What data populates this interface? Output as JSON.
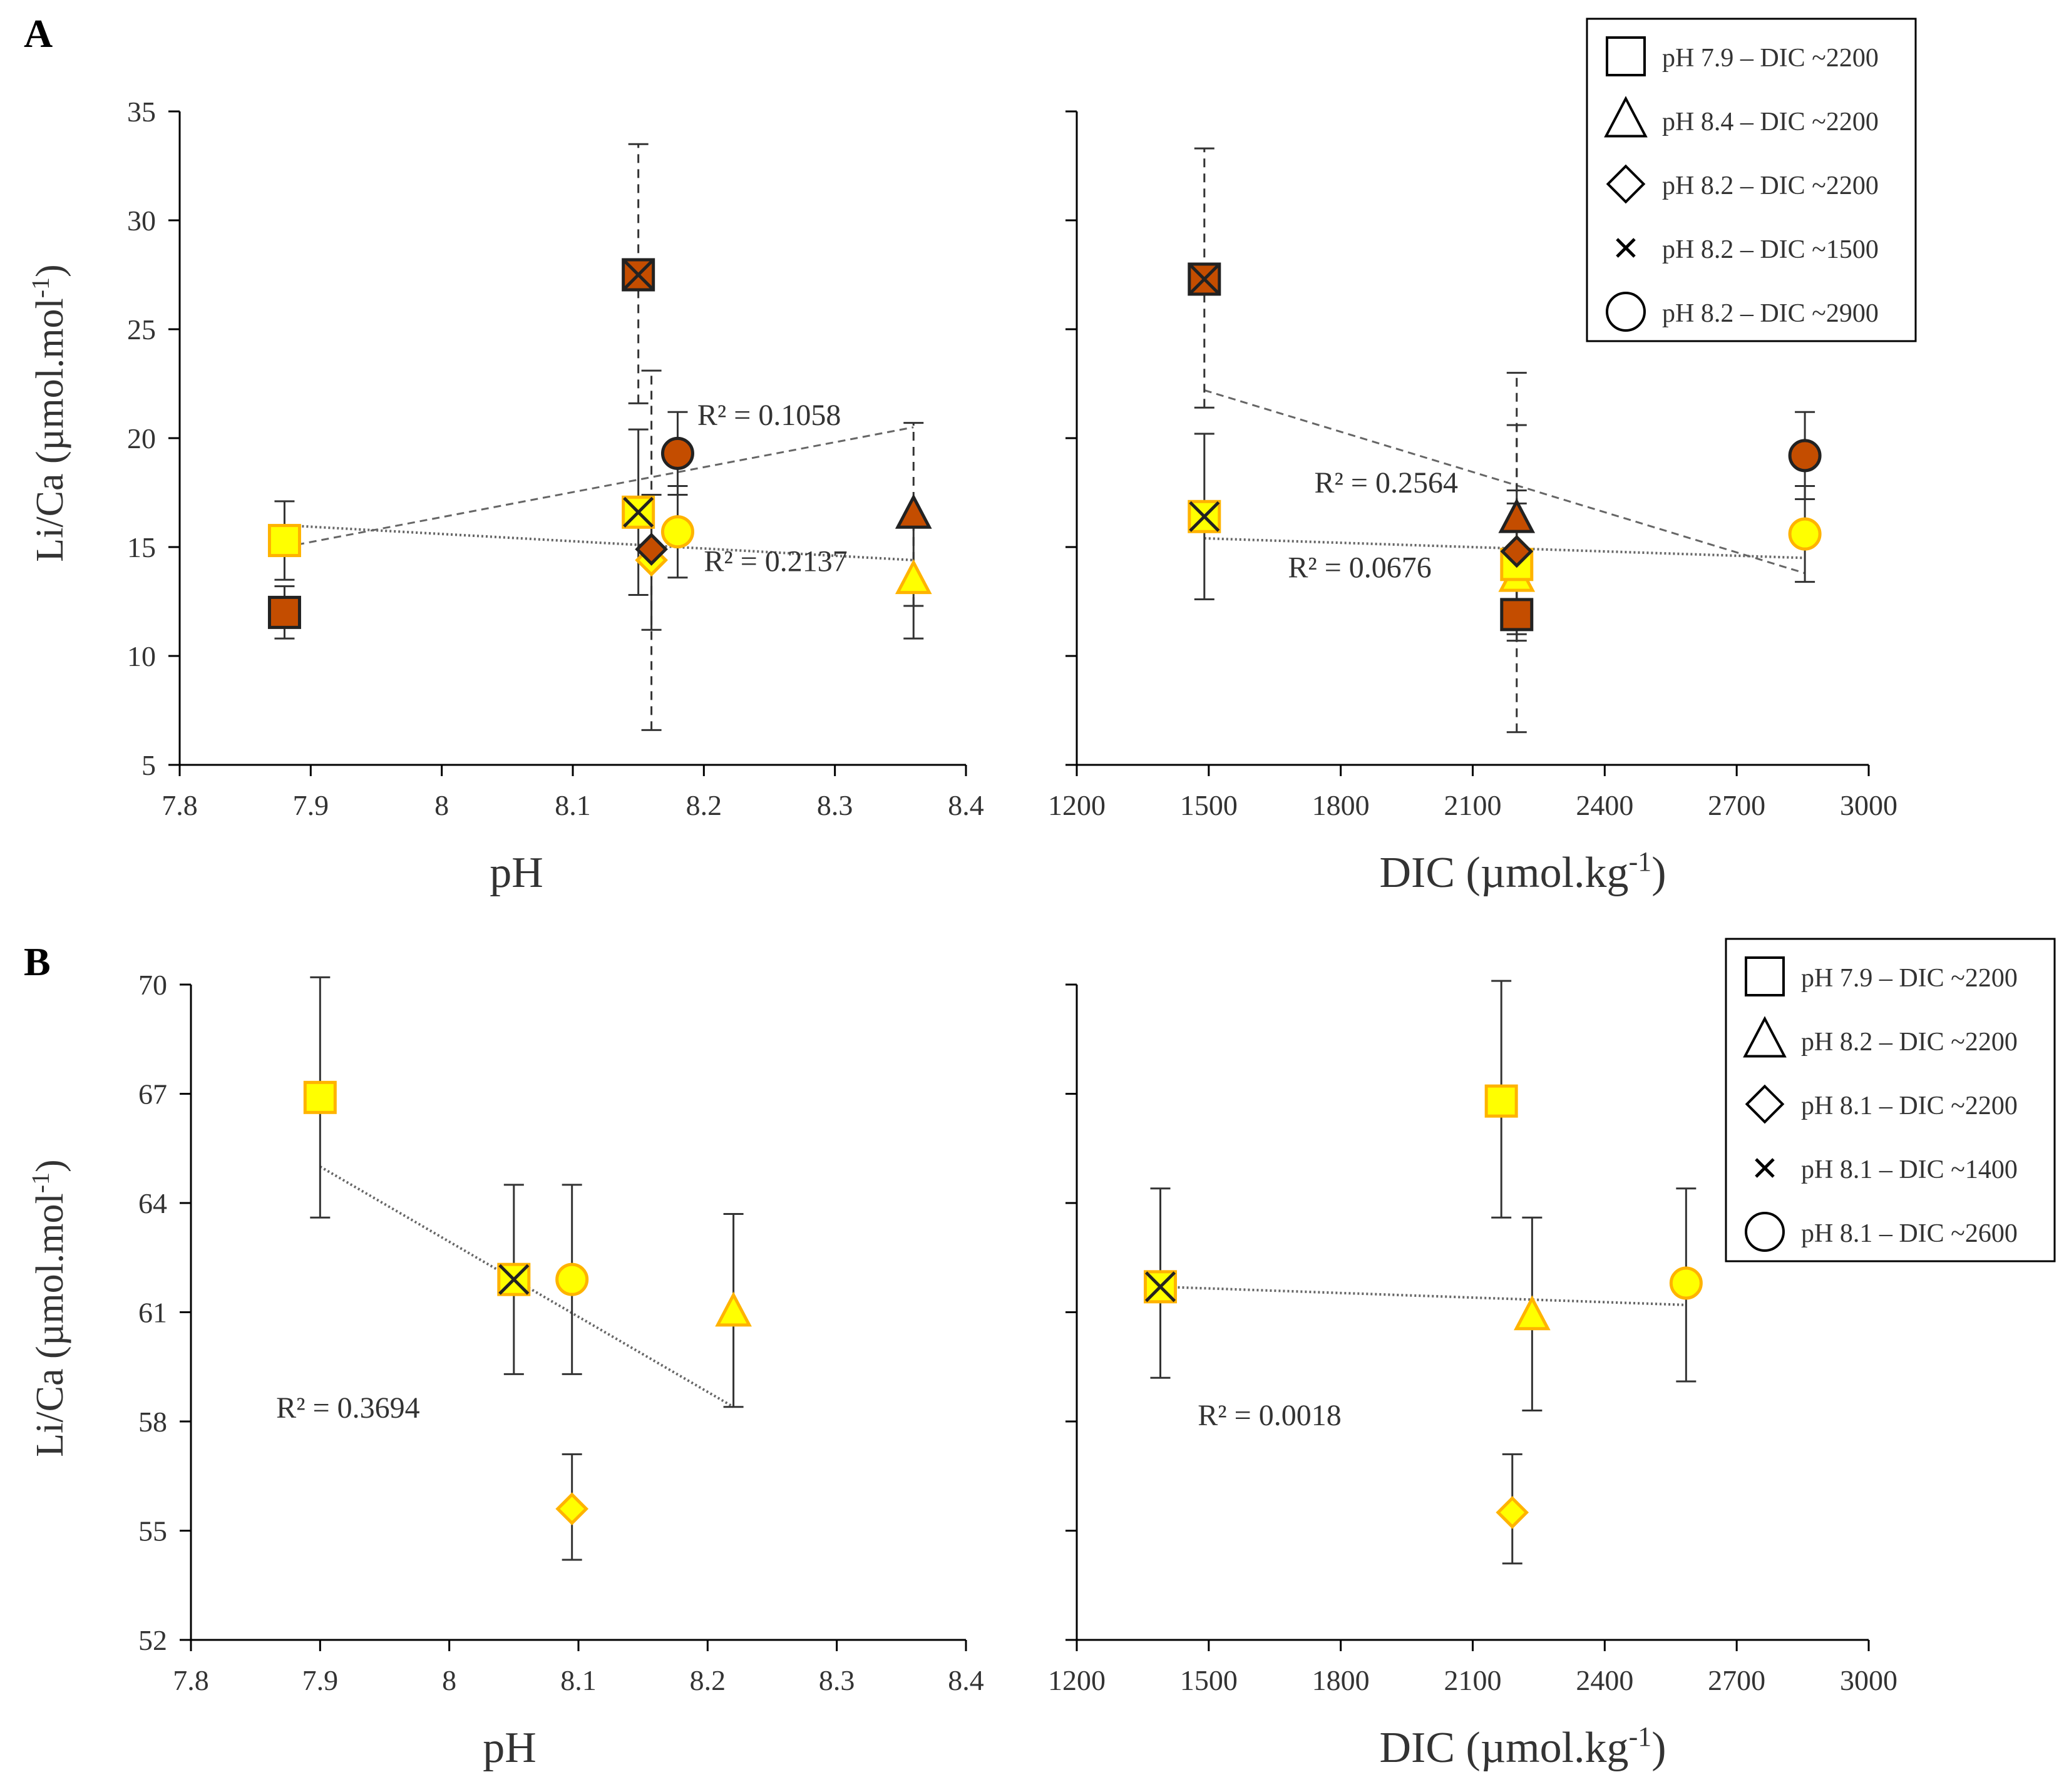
{
  "colors": {
    "orange": "#C44D00",
    "yellow": "#FFFF00",
    "yellow_edge": "#FFB300",
    "dark_edge": "#222222",
    "trend": "#666666"
  },
  "panels": [
    {
      "letter": "A",
      "ylabel": "Li/Ca (µmol.mol-1)",
      "legend": [
        {
          "symbol": "square",
          "label": "pH 7.9 – DIC ~2200"
        },
        {
          "symbol": "triangle",
          "label": "pH 8.4 – DIC ~2200"
        },
        {
          "symbol": "diamond",
          "label": "pH 8.2 – DIC ~2200"
        },
        {
          "symbol": "x",
          "label": "pH 8.2 – DIC ~1500"
        },
        {
          "symbol": "circle",
          "label": "pH 8.2 – DIC ~2900"
        }
      ]
    },
    {
      "letter": "B",
      "ylabel": "Li/Ca (µmol.mol-1)",
      "legend": [
        {
          "symbol": "square",
          "label": "pH 7.9 – DIC ~2200"
        },
        {
          "symbol": "triangle",
          "label": "pH 8.2 – DIC ~2200"
        },
        {
          "symbol": "diamond",
          "label": "pH 8.1 – DIC ~2200"
        },
        {
          "symbol": "x",
          "label": "pH 8.1 – DIC ~1400"
        },
        {
          "symbol": "circle",
          "label": "pH 8.1 – DIC ~2600"
        }
      ]
    }
  ],
  "chart_data": [
    {
      "id": "A-pH",
      "type": "scatter",
      "panel": "A",
      "xlabel": "pH",
      "ylabel": "Li/Ca (µmol.mol-1)",
      "xlim": [
        7.8,
        8.4
      ],
      "ylim": [
        5,
        35
      ],
      "xticks": [
        7.8,
        7.9,
        8,
        8.1,
        8.2,
        8.3,
        8.4
      ],
      "yticks": [
        5,
        10,
        15,
        20,
        25,
        30,
        35
      ],
      "xtick_labels": [
        "7.8",
        "7.9",
        "8",
        "8.1",
        "8.2",
        "8.3",
        "8.4"
      ],
      "ytick_labels": [
        "5",
        "10",
        "15",
        "20",
        "25",
        "30",
        "35"
      ],
      "show_ytick_labels": true,
      "points": [
        {
          "series": "orange",
          "symbol": "square",
          "x": 7.88,
          "y": 12.0,
          "err_lo": 10.8,
          "err_hi": 13.2,
          "err_style": "solid"
        },
        {
          "series": "yellow",
          "symbol": "square",
          "x": 7.88,
          "y": 15.3,
          "err_lo": 13.5,
          "err_hi": 17.1,
          "err_style": "solid"
        },
        {
          "series": "orange",
          "symbol": "x",
          "x": 8.15,
          "y": 27.5,
          "err_lo": 21.6,
          "err_hi": 33.5,
          "err_style": "dashed"
        },
        {
          "series": "yellow",
          "symbol": "x",
          "x": 8.15,
          "y": 16.6,
          "err_lo": 12.8,
          "err_hi": 20.4,
          "err_style": "solid"
        },
        {
          "series": "yellow",
          "symbol": "diamond",
          "x": 8.16,
          "y": 14.4,
          "err_lo": 11.2,
          "err_hi": 17.4,
          "err_style": "solid"
        },
        {
          "series": "orange",
          "symbol": "diamond",
          "x": 8.16,
          "y": 14.9,
          "err_lo": 6.6,
          "err_hi": 23.1,
          "err_style": "dashed"
        },
        {
          "series": "orange",
          "symbol": "circle",
          "x": 8.18,
          "y": 19.3,
          "err_lo": 17.4,
          "err_hi": 21.2,
          "err_style": "solid"
        },
        {
          "series": "yellow",
          "symbol": "circle",
          "x": 8.18,
          "y": 15.7,
          "err_lo": 13.6,
          "err_hi": 17.8,
          "err_style": "solid"
        },
        {
          "series": "orange",
          "symbol": "triangle",
          "x": 8.36,
          "y": 16.5,
          "err_lo": 12.3,
          "err_hi": 20.7,
          "err_style": "dashed"
        },
        {
          "series": "yellow",
          "symbol": "triangle",
          "x": 8.36,
          "y": 13.5,
          "err_lo": 10.8,
          "err_hi": 16.2,
          "err_style": "solid"
        }
      ],
      "trendlines": [
        {
          "series": "orange",
          "x": [
            7.88,
            8.36
          ],
          "y": [
            15.0,
            20.5
          ],
          "style": "dashed"
        },
        {
          "series": "yellow",
          "x": [
            7.88,
            8.36
          ],
          "y": [
            16.0,
            14.4
          ],
          "style": "dotted"
        }
      ],
      "annotations": [
        {
          "text": "R² = 0.1058",
          "x": 8.195,
          "y": 20.6
        },
        {
          "text": "R² = 0.2137",
          "x": 8.2,
          "y": 13.9
        }
      ]
    },
    {
      "id": "A-DIC",
      "type": "scatter",
      "panel": "A",
      "xlabel": "DIC (µmol.kg-1)",
      "ylabel": "",
      "xlim": [
        1200,
        3000
      ],
      "ylim": [
        5,
        35
      ],
      "xticks": [
        1200,
        1500,
        1800,
        2100,
        2400,
        2700,
        3000
      ],
      "yticks": [
        5,
        10,
        15,
        20,
        25,
        30,
        35
      ],
      "xtick_labels": [
        "1200",
        "1500",
        "1800",
        "2100",
        "2400",
        "2700",
        "3000"
      ],
      "ytick_labels": [],
      "show_ytick_labels": false,
      "points": [
        {
          "series": "orange",
          "symbol": "x",
          "x": 1490,
          "y": 27.3,
          "err_lo": 21.4,
          "err_hi": 33.3,
          "err_style": "dashed"
        },
        {
          "series": "yellow",
          "symbol": "x",
          "x": 1490,
          "y": 16.4,
          "err_lo": 12.6,
          "err_hi": 20.2,
          "err_style": "solid"
        },
        {
          "series": "yellow",
          "symbol": "triangle",
          "x": 2200,
          "y": 13.6,
          "err_lo": 11.0,
          "err_hi": 16.2,
          "err_style": "solid"
        },
        {
          "series": "yellow",
          "symbol": "square",
          "x": 2200,
          "y": 14.2,
          "err_lo": 11.4,
          "err_hi": 17.0,
          "err_style": "solid"
        },
        {
          "series": "yellow",
          "symbol": "diamond",
          "x": 2200,
          "y": 14.8,
          "err_lo": 12.0,
          "err_hi": 17.6,
          "err_style": "solid"
        },
        {
          "series": "orange",
          "symbol": "triangle",
          "x": 2200,
          "y": 16.3,
          "err_lo": 12.0,
          "err_hi": 20.6,
          "err_style": "dashed"
        },
        {
          "series": "orange",
          "symbol": "diamond",
          "x": 2200,
          "y": 14.8,
          "err_lo": 6.5,
          "err_hi": 23.0,
          "err_style": "dashed"
        },
        {
          "series": "orange",
          "symbol": "square",
          "x": 2200,
          "y": 11.9,
          "err_lo": 10.7,
          "err_hi": 13.1,
          "err_style": "solid"
        },
        {
          "series": "orange",
          "symbol": "circle",
          "x": 2855,
          "y": 19.2,
          "err_lo": 17.2,
          "err_hi": 21.2,
          "err_style": "solid"
        },
        {
          "series": "yellow",
          "symbol": "circle",
          "x": 2855,
          "y": 15.6,
          "err_lo": 13.4,
          "err_hi": 17.8,
          "err_style": "solid"
        }
      ],
      "trendlines": [
        {
          "series": "orange",
          "x": [
            1490,
            2855
          ],
          "y": [
            22.2,
            13.8
          ],
          "style": "dashed"
        },
        {
          "series": "yellow",
          "x": [
            1490,
            2855
          ],
          "y": [
            15.4,
            14.5
          ],
          "style": "dotted"
        }
      ],
      "annotations": [
        {
          "text": "R² = 0.2564",
          "x": 1740,
          "y": 17.5
        },
        {
          "text": "R² = 0.0676",
          "x": 1680,
          "y": 13.6
        }
      ]
    },
    {
      "id": "B-pH",
      "type": "scatter",
      "panel": "B",
      "xlabel": "pH",
      "ylabel": "Li/Ca (µmol.mol-1)",
      "xlim": [
        7.8,
        8.4
      ],
      "ylim": [
        52,
        70
      ],
      "xticks": [
        7.8,
        7.9,
        8,
        8.1,
        8.2,
        8.3,
        8.4
      ],
      "yticks": [
        52,
        55,
        58,
        61,
        64,
        67,
        70
      ],
      "xtick_labels": [
        "7.8",
        "7.9",
        "8",
        "8.1",
        "8.2",
        "8.3",
        "8.4"
      ],
      "ytick_labels": [
        "52",
        "55",
        "58",
        "61",
        "64",
        "67",
        "70"
      ],
      "show_ytick_labels": true,
      "points": [
        {
          "series": "yellow",
          "symbol": "square",
          "x": 7.9,
          "y": 66.9,
          "err_lo": 63.6,
          "err_hi": 70.2,
          "err_style": "solid"
        },
        {
          "series": "yellow",
          "symbol": "x",
          "x": 8.05,
          "y": 61.9,
          "err_lo": 59.3,
          "err_hi": 64.5,
          "err_style": "solid"
        },
        {
          "series": "yellow",
          "symbol": "circle",
          "x": 8.095,
          "y": 61.9,
          "err_lo": 59.3,
          "err_hi": 64.5,
          "err_style": "solid"
        },
        {
          "series": "yellow",
          "symbol": "diamond",
          "x": 8.095,
          "y": 55.6,
          "err_lo": 54.2,
          "err_hi": 57.1,
          "err_style": "solid"
        },
        {
          "series": "yellow",
          "symbol": "triangle",
          "x": 8.22,
          "y": 61.0,
          "err_lo": 58.4,
          "err_hi": 63.7,
          "err_style": "solid"
        }
      ],
      "trendlines": [
        {
          "series": "yellow",
          "x": [
            7.9,
            8.22
          ],
          "y": [
            65.0,
            58.4
          ],
          "style": "dotted"
        }
      ],
      "annotations": [
        {
          "text": "R² = 0.3694",
          "x": 7.866,
          "y": 58.1
        }
      ]
    },
    {
      "id": "B-DIC",
      "type": "scatter",
      "panel": "B",
      "xlabel": "DIC (µmol.kg-1)",
      "ylabel": "",
      "xlim": [
        1200,
        3000
      ],
      "ylim": [
        52,
        70
      ],
      "xticks": [
        1200,
        1500,
        1800,
        2100,
        2400,
        2700,
        3000
      ],
      "yticks": [
        52,
        55,
        58,
        61,
        64,
        67,
        70
      ],
      "xtick_labels": [
        "1200",
        "1500",
        "1800",
        "2100",
        "2400",
        "2700",
        "3000"
      ],
      "ytick_labels": [],
      "show_ytick_labels": false,
      "points": [
        {
          "series": "yellow",
          "symbol": "x",
          "x": 1390,
          "y": 61.7,
          "err_lo": 59.2,
          "err_hi": 64.4,
          "err_style": "solid"
        },
        {
          "series": "yellow",
          "symbol": "square",
          "x": 2165,
          "y": 66.8,
          "err_lo": 63.6,
          "err_hi": 70.1,
          "err_style": "solid"
        },
        {
          "series": "yellow",
          "symbol": "triangle",
          "x": 2235,
          "y": 60.9,
          "err_lo": 58.3,
          "err_hi": 63.6,
          "err_style": "solid"
        },
        {
          "series": "yellow",
          "symbol": "diamond",
          "x": 2190,
          "y": 55.5,
          "err_lo": 54.1,
          "err_hi": 57.1,
          "err_style": "solid"
        },
        {
          "series": "yellow",
          "symbol": "circle",
          "x": 2585,
          "y": 61.8,
          "err_lo": 59.1,
          "err_hi": 64.4,
          "err_style": "solid"
        }
      ],
      "trendlines": [
        {
          "series": "yellow",
          "x": [
            1390,
            2585
          ],
          "y": [
            61.7,
            61.2
          ],
          "style": "dotted"
        }
      ],
      "annotations": [
        {
          "text": "R² = 0.0018",
          "x": 1475,
          "y": 57.9
        }
      ]
    }
  ]
}
